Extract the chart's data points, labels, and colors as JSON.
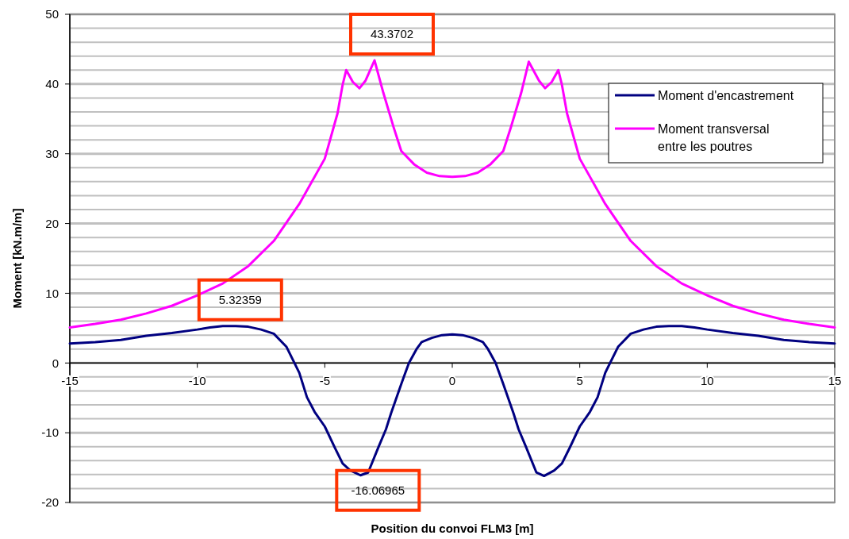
{
  "chart_data": {
    "type": "line",
    "xlabel": "Position du convoi FLM3 [m]",
    "ylabel": "Moment [kN.m/m]",
    "xlim": [
      -15,
      15
    ],
    "xticks": [
      -15,
      -10,
      -5,
      0,
      5,
      10,
      15
    ],
    "ylim": [
      -20,
      50
    ],
    "yticks": [
      -20,
      {
        "value": -18,
        "label": null
      },
      {
        "value": -16,
        "label": null
      },
      {
        "value": -14,
        "label": null
      },
      {
        "value": -12,
        "label": null
      },
      -10,
      {
        "value": -8,
        "label": null
      },
      {
        "value": -6,
        "label": null
      },
      {
        "value": -4,
        "label": null
      },
      {
        "value": -2,
        "label": null
      },
      0,
      {
        "value": 2,
        "label": null
      },
      {
        "value": 4,
        "label": null
      },
      {
        "value": 6,
        "label": null
      },
      {
        "value": 8,
        "label": null
      },
      10,
      {
        "value": 12,
        "label": null
      },
      {
        "value": 14,
        "label": null
      },
      {
        "value": 16,
        "label": null
      },
      {
        "value": 18,
        "label": null
      },
      20,
      {
        "value": 22,
        "label": null
      },
      {
        "value": 24,
        "label": null
      },
      {
        "value": 26,
        "label": null
      },
      {
        "value": 28,
        "label": null
      },
      30,
      {
        "value": 32,
        "label": null
      },
      {
        "value": 34,
        "label": null
      },
      {
        "value": 36,
        "label": null
      },
      {
        "value": 38,
        "label": null
      },
      40,
      {
        "value": 42,
        "label": null
      },
      {
        "value": 44,
        "label": null
      },
      {
        "value": 46,
        "label": null
      },
      {
        "value": 48,
        "label": null
      },
      50
    ],
    "grid": "y",
    "legend": "top right",
    "line_style": "solid",
    "marker": "none",
    "series": [
      {
        "name": "Moment d'encastrement",
        "color": "#000080",
        "x": [
          -15,
          -14,
          -13,
          -12,
          -11,
          -10,
          -9.5,
          -9,
          -8.5,
          -8,
          -7.5,
          -7,
          -6.5,
          -6,
          -5.7,
          -5.4,
          -5,
          -4.6,
          -4.3,
          -4,
          -3.6,
          -3.3,
          -2.9,
          -2.6,
          -2.4,
          -2,
          -1.7,
          -1.4,
          -1.2,
          -0.8,
          -0.4,
          0,
          0.4,
          0.8,
          1.2,
          1.4,
          1.7,
          2,
          2.4,
          2.6,
          2.9,
          3.3,
          3.6,
          4,
          4.3,
          4.6,
          5,
          5.4,
          5.7,
          6,
          6.5,
          7,
          7.5,
          8,
          8.5,
          9,
          9.5,
          10,
          11,
          12,
          13,
          14,
          15
        ],
        "values": [
          2.8,
          3.0,
          3.3,
          3.9,
          4.3,
          4.8,
          5.1,
          5.3,
          5.3,
          5.2,
          4.8,
          4.2,
          2.3,
          -1.4,
          -4.9,
          -7.0,
          -9.1,
          -12.2,
          -14.4,
          -15.4,
          -16.1,
          -15.7,
          -12.1,
          -9.5,
          -7.2,
          -3.0,
          0,
          2.0,
          3.0,
          3.6,
          4.0,
          4.1,
          4.0,
          3.6,
          3.0,
          2.0,
          0,
          -3.0,
          -7.2,
          -9.5,
          -12.1,
          -15.7,
          -16.2,
          -15.4,
          -14.4,
          -12.2,
          -9.1,
          -7.0,
          -4.9,
          -1.4,
          2.3,
          4.2,
          4.8,
          5.2,
          5.3,
          5.3,
          5.1,
          4.8,
          4.3,
          3.9,
          3.3,
          3.0,
          2.8
        ]
      },
      {
        "name": "Moment transversal entre les poutres",
        "color": "#ff00ff",
        "x": [
          -15,
          -14,
          -13,
          -12,
          -11,
          -10,
          -9,
          -8,
          -7,
          -6,
          -5,
          -4.5,
          -4.3,
          -4.16,
          -3.9,
          -3.64,
          -3.4,
          -3.05,
          -2.7,
          -2.3,
          -2,
          -1.5,
          -1,
          -0.5,
          0,
          0.5,
          1,
          1.5,
          2,
          2.3,
          2.7,
          3.0,
          3.4,
          3.64,
          3.9,
          4.16,
          4.3,
          4.5,
          5,
          6,
          7,
          8,
          9,
          10,
          11,
          12,
          13,
          14,
          15
        ],
        "values": [
          5.1,
          5.6,
          6.2,
          7.1,
          8.2,
          9.7,
          11.4,
          13.9,
          17.5,
          22.8,
          29.3,
          35.8,
          39.9,
          42.0,
          40.3,
          39.4,
          40.5,
          43.4,
          38.7,
          33.8,
          30.4,
          28.5,
          27.3,
          26.8,
          26.7,
          26.8,
          27.3,
          28.5,
          30.4,
          33.8,
          38.7,
          43.2,
          40.5,
          39.4,
          40.3,
          42.0,
          39.9,
          35.8,
          29.3,
          22.8,
          17.5,
          13.9,
          11.4,
          9.7,
          8.2,
          7.1,
          6.2,
          5.6,
          5.1
        ]
      }
    ],
    "annotations": [
      {
        "text": "43.3702",
        "x": -3.05,
        "y": 43.4
      },
      {
        "text": "5.32359",
        "x": -9,
        "y": 5.3
      },
      {
        "text": "-16.06965",
        "x": -3.6,
        "y": -16.1
      }
    ]
  }
}
